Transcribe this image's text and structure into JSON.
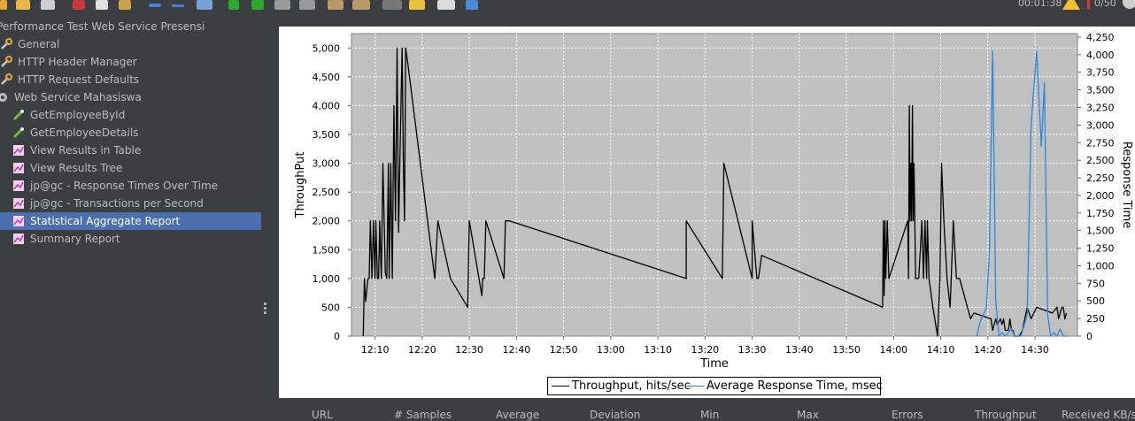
{
  "toolbar": {
    "timer": "00:01:38",
    "counter": "0/50"
  },
  "tree": {
    "items": [
      {
        "label": "Performance Test Web Service Presensi",
        "icon": "test-plan-icon"
      },
      {
        "label": "General",
        "icon": "wrench-icon"
      },
      {
        "label": "HTTP Header Manager",
        "icon": "wrench-icon"
      },
      {
        "label": "HTTP Request Defaults",
        "icon": "wrench-icon"
      },
      {
        "label": "Web Service Mahasiswa",
        "icon": "gear-icon"
      },
      {
        "label": "GetEmployeeById",
        "icon": "pipette-icon"
      },
      {
        "label": "GetEmployeeDetails",
        "icon": "pipette-icon"
      },
      {
        "label": "View Results in Table",
        "icon": "graph-icon"
      },
      {
        "label": "View Results Tree",
        "icon": "graph-icon"
      },
      {
        "label": "jp@gc - Response Times Over Time",
        "icon": "graph-icon"
      },
      {
        "label": "jp@gc - Transactions per Second",
        "icon": "graph-icon"
      },
      {
        "label": "Statistical Aggregate Report",
        "icon": "graph-icon",
        "selected": true
      },
      {
        "label": "Summary Report",
        "icon": "graph-icon"
      }
    ]
  },
  "chart_data": {
    "type": "line",
    "xlabel": "Time",
    "ylabel": "ThroughPut",
    "y2label": "Response Time",
    "ylim": [
      0,
      5250
    ],
    "y2lim": [
      0,
      4300
    ],
    "xlim": [
      "12:05",
      "14:39"
    ],
    "xticks": [
      "12:10",
      "12:20",
      "12:30",
      "12:40",
      "12:50",
      "13:00",
      "13:10",
      "13:20",
      "13:30",
      "13:40",
      "13:50",
      "14:00",
      "14:10",
      "14:20",
      "14:30"
    ],
    "yticks": [
      "0",
      "500",
      "1,000",
      "1,500",
      "2,000",
      "2,500",
      "3,000",
      "3,500",
      "4,000",
      "4,500",
      "5,000"
    ],
    "y2ticks": [
      "0",
      "250",
      "500",
      "750",
      "1,000",
      "1,250",
      "1,500",
      "1,750",
      "2,000",
      "2,250",
      "2,500",
      "2,750",
      "3,000",
      "3,250",
      "3,500",
      "3,750",
      "4,000",
      "4,250"
    ],
    "grid": true,
    "legend_position": "bottom",
    "series": [
      {
        "name": "Throughput, hits/sec",
        "color": "#000000",
        "axis": "left",
        "x": [
          "12:07:30",
          "12:07:45",
          "12:08:00",
          "12:08:30",
          "12:08:45",
          "12:09:00",
          "12:09:20",
          "12:09:40",
          "12:10:00",
          "12:10:10",
          "12:10:30",
          "12:10:45",
          "12:11:00",
          "12:11:20",
          "12:11:40",
          "12:12:10",
          "12:12:30",
          "12:12:50",
          "12:13:00",
          "12:13:20",
          "12:13:40",
          "12:14:00",
          "12:14:20",
          "12:14:40",
          "12:15:00",
          "12:15:15",
          "12:15:30",
          "12:15:45",
          "12:16:00",
          "12:16:15",
          "12:16:30",
          "12:17:00",
          "12:22:40",
          "12:23:20",
          "12:26:00",
          "12:29:40",
          "12:30:00",
          "12:32:40",
          "12:32:50",
          "12:33:10",
          "12:33:30",
          "12:37:20",
          "12:37:40",
          "12:38:30",
          "13:16:00",
          "13:16:00",
          "13:23:40",
          "13:24:00",
          "13:30:00",
          "13:30:00",
          "13:31:00",
          "13:31:20",
          "13:32:00",
          "13:57:40",
          "13:57:50",
          "13:58:00",
          "13:58:10",
          "13:58:20",
          "13:58:40",
          "13:59:00",
          "14:03:00",
          "14:03:10",
          "14:03:20",
          "14:03:30",
          "14:03:40",
          "14:03:50",
          "14:04:00",
          "14:04:10",
          "14:04:20",
          "14:04:40",
          "14:05:00",
          "14:05:20",
          "14:06:00",
          "14:06:20",
          "14:06:40",
          "14:07:00",
          "14:07:10",
          "14:07:30",
          "14:08:20",
          "14:09:20",
          "14:09:50",
          "14:10:10",
          "14:10:40",
          "14:11:20",
          "14:12:00",
          "14:12:40",
          "14:13:20",
          "14:14:00",
          "14:16:20",
          "14:17:00",
          "14:20:40",
          "14:21:00",
          "14:21:40",
          "14:22:00",
          "14:22:40",
          "14:23:00",
          "14:23:20",
          "14:23:40",
          "14:24:00",
          "14:24:20",
          "14:24:40",
          "14:25:00",
          "14:25:20",
          "14:25:40",
          "14:26:40",
          "14:27:20",
          "14:28:20",
          "14:29:10",
          "14:30:20",
          "14:33:40",
          "14:34:40",
          "14:35:00",
          "14:35:20",
          "14:35:40",
          "14:36:00",
          "14:36:20",
          "14:36:40"
        ],
        "values": [
          0,
          1000,
          600,
          1000,
          1000,
          2000,
          1000,
          2000,
          1000,
          2000,
          1000,
          1000,
          2000,
          1000,
          3000,
          1100,
          1000,
          3000,
          1000,
          3000,
          1000,
          4000,
          2000,
          5000,
          1800,
          3000,
          4000,
          5000,
          3000,
          2000,
          5000,
          4700,
          1000,
          2000,
          1000,
          500,
          2000,
          700,
          1000,
          1000,
          2000,
          1000,
          2000,
          2000,
          1000,
          2000,
          1000,
          3000,
          1000,
          2000,
          1000,
          1000,
          1400,
          500,
          2000,
          700,
          2000,
          1000,
          2000,
          1000,
          2000,
          1000,
          4000,
          2000,
          3000,
          2000,
          4000,
          2000,
          3000,
          1000,
          1000,
          1000,
          2000,
          1000,
          2000,
          1000,
          2000,
          1000,
          500,
          0,
          1000,
          3000,
          2000,
          1000,
          500,
          2000,
          1000,
          1000,
          300,
          400,
          300,
          100,
          300,
          200,
          300,
          200,
          300,
          100,
          100,
          100,
          300,
          100,
          100,
          0,
          0,
          100,
          500,
          300,
          500,
          400,
          500,
          300,
          400,
          500,
          500,
          300,
          400
        ]
      },
      {
        "name": "Average Response Time, msec",
        "color": "#2e86de",
        "axis": "right",
        "x": [
          "14:17:40",
          "14:18:20",
          "14:19:00",
          "14:19:40",
          "14:20:20",
          "14:21:00",
          "14:21:40",
          "14:22:20",
          "14:23:00",
          "14:23:40",
          "14:24:20",
          "14:25:00",
          "14:25:40",
          "14:27:00",
          "14:28:20",
          "14:29:10",
          "14:30:20",
          "14:31:20",
          "14:32:00",
          "14:32:40",
          "14:33:20",
          "14:34:00",
          "14:34:40",
          "14:35:20",
          "14:36:00",
          "14:36:40"
        ],
        "values": [
          0,
          200,
          300,
          400,
          1200,
          4050,
          500,
          0,
          50,
          0,
          50,
          100,
          0,
          0,
          300,
          3000,
          4050,
          2700,
          3600,
          300,
          0,
          50,
          0,
          100,
          0,
          0
        ]
      }
    ]
  },
  "table_header": {
    "columns": [
      "URL",
      "# Samples",
      "Average",
      "Deviation",
      "Min",
      "Max",
      "Errors",
      "Throughput",
      "Received KB/sec"
    ]
  }
}
